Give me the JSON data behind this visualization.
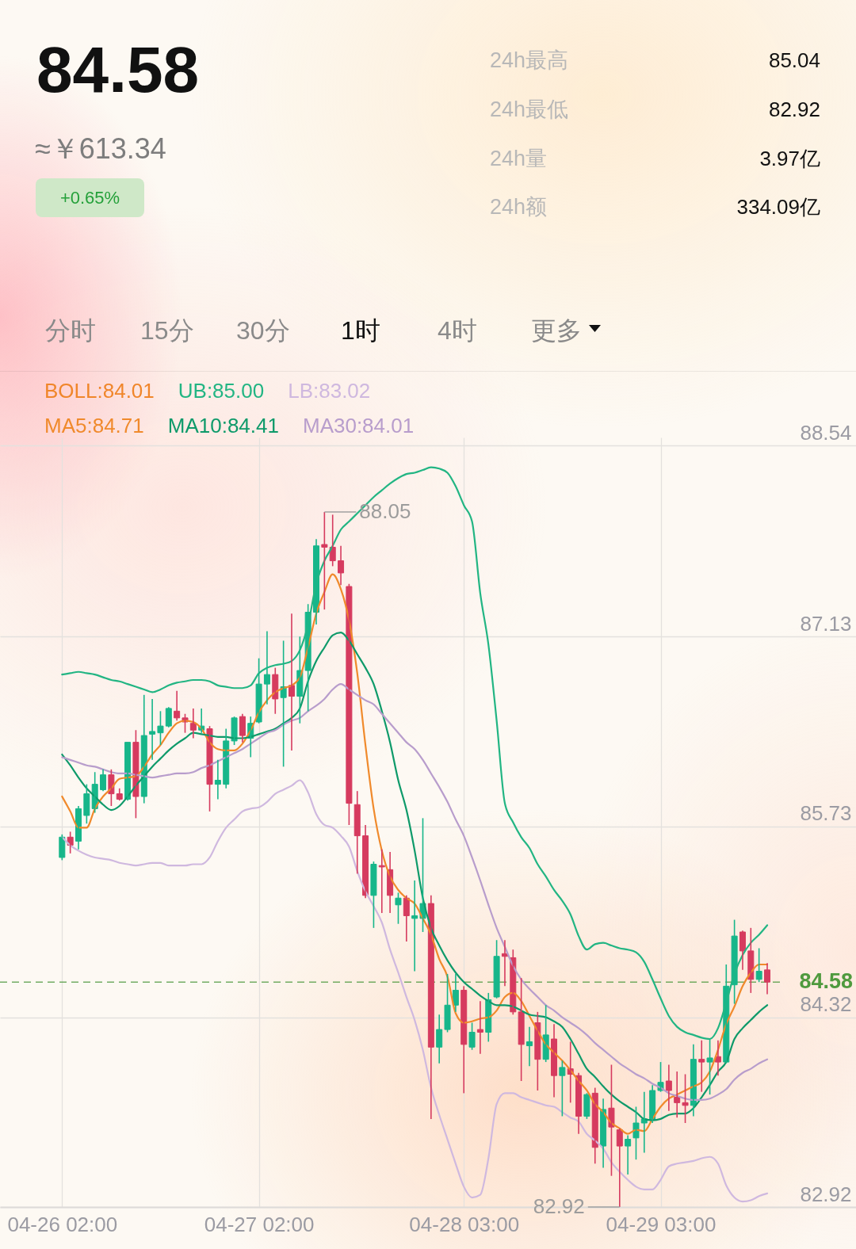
{
  "chart_data": {
    "type": "candlestick",
    "title": "84.58",
    "subtitle": "≈￥613.34",
    "categories": [
      "04-26 02:00",
      null,
      null,
      null,
      null,
      null,
      null,
      null,
      null,
      null,
      null,
      null,
      null,
      null,
      null,
      null,
      null,
      null,
      null,
      null,
      null,
      null,
      null,
      null,
      "04-27 02:00",
      null,
      null,
      null,
      null,
      null,
      null,
      null,
      null,
      null,
      null,
      null,
      null,
      null,
      null,
      null,
      null,
      null,
      null,
      null,
      null,
      null,
      null,
      null,
      null,
      "04-28 03:00",
      null,
      null,
      null,
      null,
      null,
      null,
      null,
      null,
      null,
      null,
      null,
      null,
      null,
      null,
      null,
      null,
      null,
      null,
      null,
      null,
      null,
      null,
      null,
      "04-29 03:00",
      null,
      null,
      null,
      null,
      null,
      null,
      null,
      null,
      null,
      null,
      null,
      null,
      null
    ],
    "ohlc": [
      [
        85.5,
        85.67,
        85.48,
        85.65
      ],
      [
        85.65,
        85.69,
        85.53,
        85.59
      ],
      [
        85.62,
        85.88,
        85.56,
        85.86
      ],
      [
        85.81,
        86.04,
        85.75,
        85.97
      ],
      [
        85.86,
        86.13,
        85.83,
        86.04
      ],
      [
        86.0,
        86.15,
        85.99,
        86.11
      ],
      [
        86.11,
        86.15,
        85.88,
        85.97
      ],
      [
        85.97,
        86.01,
        85.92,
        85.93
      ],
      [
        85.93,
        86.35,
        85.92,
        86.35
      ],
      [
        86.35,
        86.44,
        85.79,
        85.95
      ],
      [
        85.95,
        86.7,
        85.9,
        86.4
      ],
      [
        86.41,
        86.67,
        86.22,
        86.43
      ],
      [
        86.42,
        86.58,
        86.33,
        86.47
      ],
      [
        86.47,
        86.61,
        86.46,
        86.6
      ],
      [
        86.58,
        86.73,
        86.51,
        86.53
      ],
      [
        86.53,
        86.56,
        86.42,
        86.5
      ],
      [
        86.49,
        86.6,
        86.38,
        86.44
      ],
      [
        86.44,
        86.6,
        86.42,
        86.47
      ],
      [
        86.45,
        86.47,
        85.84,
        86.04
      ],
      [
        86.04,
        86.22,
        85.93,
        86.07
      ],
      [
        86.04,
        86.45,
        86.01,
        86.36
      ],
      [
        86.36,
        86.54,
        86.33,
        86.53
      ],
      [
        86.54,
        86.56,
        86.35,
        86.4
      ],
      [
        86.38,
        86.54,
        86.24,
        86.49
      ],
      [
        86.5,
        86.97,
        86.49,
        86.78
      ],
      [
        86.78,
        87.17,
        86.63,
        86.85
      ],
      [
        86.85,
        86.9,
        86.56,
        86.67
      ],
      [
        86.68,
        87.1,
        86.17,
        86.76
      ],
      [
        86.77,
        87.3,
        86.29,
        86.69
      ],
      [
        86.69,
        87.13,
        86.49,
        86.88
      ],
      [
        86.88,
        87.37,
        86.58,
        87.31
      ],
      [
        87.31,
        87.85,
        87.22,
        87.8
      ],
      [
        87.81,
        88.05,
        87.33,
        87.79
      ],
      [
        87.79,
        88.03,
        87.65,
        87.69
      ],
      [
        87.69,
        87.8,
        87.51,
        87.6
      ],
      [
        87.5,
        87.52,
        85.74,
        85.9
      ],
      [
        85.89,
        85.99,
        85.38,
        85.66
      ],
      [
        85.66,
        85.74,
        85.2,
        85.22
      ],
      [
        85.22,
        85.47,
        84.98,
        85.45
      ],
      [
        85.44,
        85.56,
        85.09,
        85.43
      ],
      [
        85.41,
        85.54,
        85.09,
        85.22
      ],
      [
        85.15,
        85.24,
        85.01,
        85.2
      ],
      [
        85.2,
        85.22,
        84.88,
        85.07
      ],
      [
        85.05,
        85.33,
        84.66,
        85.07
      ],
      [
        85.05,
        85.79,
        84.95,
        85.16
      ],
      [
        85.16,
        85.22,
        83.57,
        84.1
      ],
      [
        84.1,
        84.34,
        83.98,
        84.23
      ],
      [
        84.23,
        84.64,
        84.21,
        84.41
      ],
      [
        84.41,
        84.64,
        84.36,
        84.52
      ],
      [
        84.52,
        84.55,
        83.76,
        84.12
      ],
      [
        84.1,
        84.28,
        84.08,
        84.21
      ],
      [
        84.23,
        84.44,
        84.05,
        84.21
      ],
      [
        84.21,
        84.5,
        84.14,
        84.45
      ],
      [
        84.47,
        84.89,
        84.46,
        84.77
      ],
      [
        84.79,
        84.89,
        84.55,
        84.77
      ],
      [
        84.76,
        84.82,
        84.34,
        84.36
      ],
      [
        84.36,
        84.61,
        83.85,
        84.12
      ],
      [
        84.11,
        84.25,
        83.96,
        84.14
      ],
      [
        84.28,
        84.36,
        83.78,
        84.01
      ],
      [
        84.01,
        84.41,
        83.99,
        84.19
      ],
      [
        84.16,
        84.27,
        83.73,
        83.89
      ],
      [
        83.89,
        84.0,
        83.59,
        83.95
      ],
      [
        83.94,
        84.14,
        83.69,
        83.9
      ],
      [
        83.89,
        83.91,
        83.46,
        83.59
      ],
      [
        83.59,
        83.76,
        83.57,
        83.75
      ],
      [
        83.76,
        83.8,
        83.24,
        83.36
      ],
      [
        83.37,
        83.72,
        83.21,
        83.64
      ],
      [
        83.65,
        83.97,
        83.15,
        83.51
      ],
      [
        83.49,
        83.5,
        82.92,
        83.37
      ],
      [
        83.37,
        83.45,
        83.16,
        83.42
      ],
      [
        83.43,
        83.66,
        83.27,
        83.54
      ],
      [
        83.54,
        83.77,
        83.32,
        83.57
      ],
      [
        83.56,
        83.82,
        83.54,
        83.78
      ],
      [
        83.78,
        83.99,
        83.77,
        83.84
      ],
      [
        83.85,
        83.97,
        83.63,
        83.78
      ],
      [
        83.73,
        83.92,
        83.58,
        83.69
      ],
      [
        83.69,
        83.9,
        83.54,
        83.67
      ],
      [
        83.67,
        84.12,
        83.59,
        84.01
      ],
      [
        84.01,
        84.15,
        83.77,
        83.99
      ],
      [
        83.99,
        84.16,
        83.75,
        84.02
      ],
      [
        84.03,
        84.15,
        83.89,
        83.99
      ],
      [
        83.99,
        84.71,
        83.98,
        84.55
      ],
      [
        84.56,
        85.04,
        84.42,
        84.92
      ],
      [
        84.95,
        84.96,
        84.67,
        84.81
      ],
      [
        84.81,
        84.98,
        84.5,
        84.6
      ],
      [
        84.6,
        84.83,
        84.58,
        84.66
      ],
      [
        84.67,
        84.72,
        84.49,
        84.58
      ]
    ],
    "colors": [
      "#17b68a",
      "#d63b5f",
      "#17b68a",
      "#17b68a",
      "#17b68a",
      "#17b68a",
      "#d63b5f",
      "#d63b5f",
      "#17b68a",
      "#d63b5f",
      "#17b68a",
      "#17b68a",
      "#17b68a",
      "#17b68a",
      "#d63b5f",
      "#d63b5f",
      "#d63b5f",
      "#17b68a",
      "#d63b5f",
      "#17b68a",
      "#17b68a",
      "#17b68a",
      "#d63b5f",
      "#17b68a",
      "#17b68a",
      "#17b68a",
      "#d63b5f",
      "#17b68a",
      "#d63b5f",
      "#17b68a",
      "#17b68a",
      "#17b68a",
      "#d63b5f",
      "#d63b5f",
      "#d63b5f",
      "#d63b5f",
      "#d63b5f",
      "#d63b5f",
      "#17b68a",
      "#d63b5f",
      "#d63b5f",
      "#17b68a",
      "#d63b5f",
      "#17b68a",
      "#17b68a",
      "#d63b5f",
      "#17b68a",
      "#17b68a",
      "#17b68a",
      "#d63b5f",
      "#17b68a",
      "#d63b5f",
      "#17b68a",
      "#17b68a",
      "#d63b5f",
      "#d63b5f",
      "#d63b5f",
      "#17b68a",
      "#d63b5f",
      "#17b68a",
      "#d63b5f",
      "#17b68a",
      "#d63b5f",
      "#d63b5f",
      "#17b68a",
      "#d63b5f",
      "#17b68a",
      "#d63b5f",
      "#d63b5f",
      "#17b68a",
      "#17b68a",
      "#17b68a",
      "#17b68a",
      "#17b68a",
      "#d63b5f",
      "#d63b5f",
      "#d63b5f",
      "#17b68a",
      "#d63b5f",
      "#17b68a",
      "#d63b5f",
      "#17b68a",
      "#17b68a",
      "#d63b5f",
      "#d63b5f",
      "#17b68a",
      "#d63b5f"
    ],
    "series": [
      {
        "name": "UB:85.00",
        "type": "line",
        "color": "#22b583",
        "values": [
          86.85,
          86.86,
          86.87,
          86.86,
          86.85,
          86.83,
          86.81,
          86.8,
          86.78,
          86.76,
          86.74,
          86.72,
          86.74,
          86.77,
          86.79,
          86.8,
          86.81,
          86.81,
          86.8,
          86.77,
          86.76,
          86.75,
          86.75,
          86.77,
          86.86,
          86.9,
          86.92,
          86.93,
          86.95,
          87.03,
          87.22,
          87.52,
          87.69,
          87.8,
          87.92,
          87.98,
          88.04,
          88.1,
          88.16,
          88.21,
          88.26,
          88.3,
          88.33,
          88.34,
          88.36,
          88.38,
          88.37,
          88.34,
          88.24,
          88.1,
          87.98,
          87.45,
          87.07,
          86.51,
          85.9,
          85.76,
          85.65,
          85.57,
          85.45,
          85.36,
          85.26,
          85.18,
          85.08,
          84.92,
          84.82,
          84.86,
          84.87,
          84.85,
          84.83,
          84.82,
          84.8,
          84.73,
          84.6,
          84.46,
          84.33,
          84.25,
          84.21,
          84.19,
          84.17,
          84.16,
          84.24,
          84.43,
          84.64,
          84.78,
          84.87,
          84.93,
          85.0
        ]
      },
      {
        "name": "LB:83.02",
        "type": "line",
        "color": "#cfb8df",
        "values": [
          85.65,
          85.59,
          85.55,
          85.52,
          85.5,
          85.49,
          85.48,
          85.46,
          85.45,
          85.44,
          85.45,
          85.46,
          85.46,
          85.44,
          85.44,
          85.44,
          85.45,
          85.45,
          85.5,
          85.62,
          85.72,
          85.78,
          85.84,
          85.86,
          85.87,
          85.91,
          85.97,
          86.0,
          86.03,
          86.07,
          85.98,
          85.82,
          85.74,
          85.72,
          85.66,
          85.58,
          85.4,
          85.25,
          85.14,
          85.02,
          84.82,
          84.65,
          84.47,
          84.3,
          84.08,
          83.8,
          83.6,
          83.42,
          83.24,
          83.07,
          82.99,
          83.01,
          83.28,
          83.68,
          83.76,
          83.76,
          83.73,
          83.71,
          83.69,
          83.67,
          83.66,
          83.62,
          83.58,
          83.55,
          83.46,
          83.41,
          83.35,
          83.25,
          83.18,
          83.12,
          83.07,
          83.05,
          83.05,
          83.12,
          83.22,
          83.24,
          83.25,
          83.26,
          83.28,
          83.29,
          83.24,
          83.08,
          82.99,
          82.96,
          82.97,
          83.0,
          83.02
        ]
      },
      {
        "name": "MA5:84.71",
        "type": "line",
        "color": "#f08a2c",
        "values": [
          85.95,
          85.84,
          85.72,
          85.72,
          85.86,
          85.95,
          86.01,
          86.08,
          86.09,
          86.1,
          86.17,
          86.26,
          86.33,
          86.42,
          86.49,
          86.51,
          86.5,
          86.45,
          86.35,
          86.3,
          86.29,
          86.29,
          86.34,
          86.44,
          86.57,
          86.66,
          86.72,
          86.75,
          86.77,
          86.83,
          87.05,
          87.3,
          87.46,
          87.59,
          87.48,
          87.25,
          86.86,
          86.33,
          85.86,
          85.55,
          85.36,
          85.26,
          85.2,
          85.16,
          85.05,
          84.93,
          84.75,
          84.62,
          84.35,
          84.28,
          84.29,
          84.31,
          84.32,
          84.37,
          84.47,
          84.5,
          84.44,
          84.33,
          84.22,
          84.12,
          84.06,
          84.0,
          83.93,
          83.85,
          83.78,
          83.68,
          83.62,
          83.54,
          83.5,
          83.46,
          83.49,
          83.48,
          83.57,
          83.66,
          83.72,
          83.75,
          83.78,
          83.81,
          83.84,
          83.92,
          84.08,
          84.27,
          84.4,
          84.55,
          84.65,
          84.71,
          84.71
        ]
      },
      {
        "name": "MA10:84.41",
        "type": "line",
        "color": "#0e9a6a",
        "values": [
          86.26,
          86.18,
          86.09,
          86.01,
          85.95,
          85.89,
          85.85,
          85.88,
          85.95,
          86.03,
          86.1,
          86.17,
          86.23,
          86.29,
          86.34,
          86.38,
          86.42,
          86.41,
          86.4,
          86.39,
          86.39,
          86.38,
          86.38,
          86.39,
          86.41,
          86.43,
          86.45,
          86.49,
          86.53,
          86.6,
          86.8,
          86.95,
          87.05,
          87.14,
          87.16,
          87.1,
          87.0,
          86.9,
          86.78,
          86.58,
          86.35,
          86.07,
          85.85,
          85.55,
          85.2,
          84.98,
          84.85,
          84.74,
          84.65,
          84.58,
          84.53,
          84.48,
          84.44,
          84.41,
          84.41,
          84.4,
          84.37,
          84.34,
          84.33,
          84.32,
          84.29,
          84.25,
          84.16,
          84.05,
          83.94,
          83.88,
          83.81,
          83.75,
          83.7,
          83.66,
          83.62,
          83.57,
          83.56,
          83.57,
          83.6,
          83.61,
          83.61,
          83.65,
          83.73,
          83.82,
          83.92,
          83.99,
          84.16,
          84.24,
          84.3,
          84.36,
          84.41
        ]
      },
      {
        "name": "MA30:84.01",
        "type": "line",
        "color": "#b89dcc",
        "values": [
          86.24,
          86.22,
          86.2,
          86.18,
          86.17,
          86.15,
          86.13,
          86.12,
          86.12,
          86.11,
          86.1,
          86.09,
          86.1,
          86.11,
          86.12,
          86.12,
          86.13,
          86.16,
          86.18,
          86.21,
          86.24,
          86.27,
          86.3,
          86.34,
          86.38,
          86.42,
          86.44,
          86.48,
          86.51,
          86.53,
          86.58,
          86.62,
          86.67,
          86.74,
          86.78,
          86.74,
          86.7,
          86.66,
          86.63,
          86.56,
          86.49,
          86.42,
          86.35,
          86.3,
          86.22,
          86.12,
          86.02,
          85.91,
          85.78,
          85.66,
          85.5,
          85.33,
          85.15,
          84.98,
          84.84,
          84.7,
          84.6,
          84.53,
          84.47,
          84.41,
          84.37,
          84.32,
          84.28,
          84.24,
          84.19,
          84.13,
          84.08,
          84.03,
          83.98,
          83.94,
          83.9,
          83.87,
          83.83,
          83.8,
          83.76,
          83.74,
          83.72,
          83.71,
          83.71,
          83.72,
          83.75,
          83.79,
          83.86,
          83.91,
          83.94,
          83.98,
          84.01
        ]
      }
    ],
    "ylim": [
      82.92,
      88.6
    ],
    "yticks": [
      82.92,
      84.32,
      85.73,
      87.13,
      88.54
    ],
    "grid": true,
    "legend": "top left",
    "ref_lines": [
      {
        "axis": "y",
        "value": 84.58,
        "label": "84.58",
        "color": "#4f9a3e",
        "line_style": "dashed"
      }
    ],
    "annotations": [
      "88.05",
      "82.92",
      "+0.65%",
      "24h最高",
      "85.04",
      "24h最低",
      "82.92",
      "24h量",
      "3.97亿",
      "24h额",
      "334.09亿",
      "分时",
      "15分",
      "30分",
      "1时",
      "4时",
      "更多",
      "BOLL:84.01"
    ]
  }
}
